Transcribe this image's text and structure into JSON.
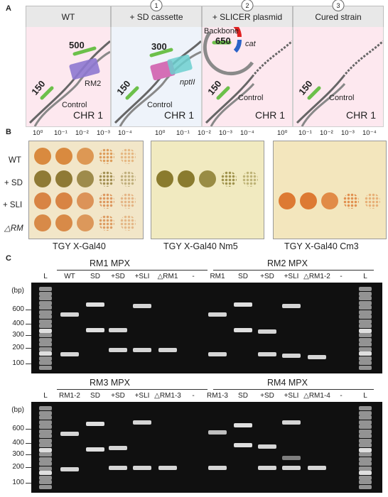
{
  "panel_a": {
    "label": "A",
    "headers": [
      "WT",
      "+ SD cassette",
      "+ SLICER plasmid",
      "Cured strain"
    ],
    "steps": [
      "1",
      "2",
      "3"
    ],
    "chr": "CHR 1",
    "control": "Control",
    "sizes": {
      "control": "150",
      "rm2": "500",
      "sd": "300",
      "backbone": "650"
    },
    "labels": {
      "rm2": "RM2",
      "nptii": "nptII",
      "backbone": "Backbone",
      "cat": "cat"
    }
  },
  "panel_b": {
    "label": "B",
    "dilutions": [
      "10⁰",
      "10⁻¹",
      "10⁻²",
      "10⁻³",
      "10⁻⁴"
    ],
    "rows": [
      "WT",
      "+ SD",
      "+ SLI",
      "△RM"
    ],
    "plates": [
      "TGY X-Gal40",
      "TGY X-Gal40 Nm5",
      "TGY X-Gal40 Cm3"
    ]
  },
  "panel_c": {
    "label": "C",
    "bp_unit": "(bp)",
    "markers": [
      "600",
      "400",
      "300",
      "200",
      "100"
    ],
    "gels": [
      {
        "titles": [
          "RM1 MPX",
          "RM2 MPX"
        ],
        "lanes": [
          "L",
          "WT",
          "SD",
          "+SD",
          "+SLI",
          "△RM1",
          "-",
          "RM1",
          "SD",
          "+SD",
          "+SLI",
          "△RM1-2",
          "-",
          "L"
        ]
      },
      {
        "titles": [
          "RM3 MPX",
          "RM4 MPX"
        ],
        "lanes": [
          "L",
          "RM1-2",
          "SD",
          "+SD",
          "+SLI",
          "△RM1-3",
          "-",
          "RM1-3",
          "SD",
          "+SD",
          "+SLI",
          "△RM1-4",
          "-",
          "L"
        ]
      }
    ]
  },
  "colors": {
    "pink_bg": "#fde8ef",
    "blue_bg": "#eef3fa",
    "green": "#6cc04a",
    "purple": "#8e78d0",
    "pink_box": "#d46fb6",
    "teal": "#6ccfcf",
    "red": "#e02020",
    "blue": "#2b63c8"
  }
}
